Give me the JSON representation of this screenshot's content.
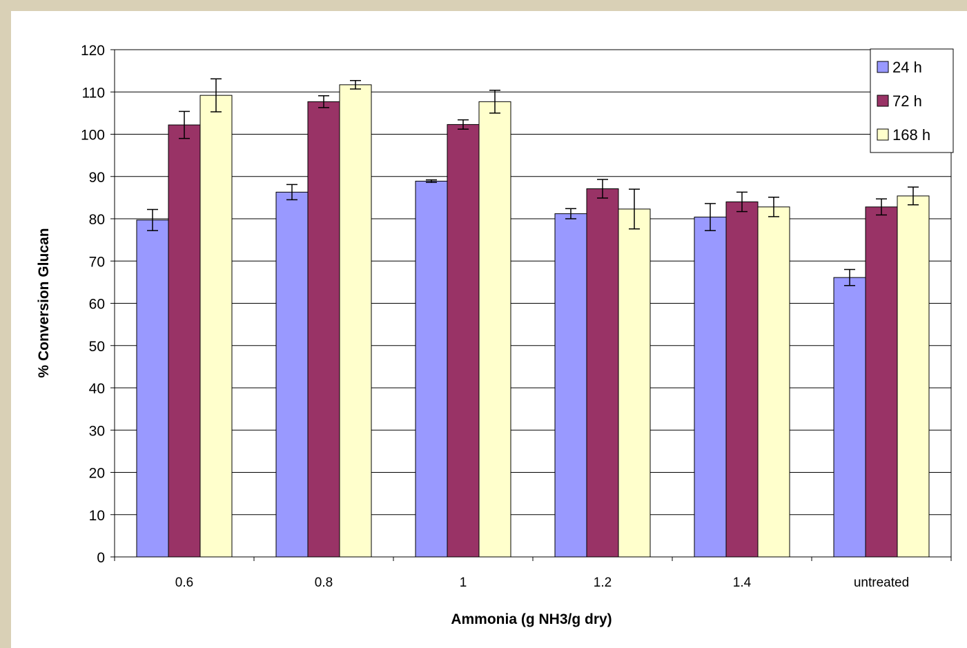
{
  "chart_data": {
    "type": "bar",
    "title": "",
    "xlabel": "Ammonia (g NH3/g dry)",
    "ylabel": "% Conversion Glucan",
    "categories": [
      "0.6",
      "0.8",
      "1",
      "1.2",
      "1.4",
      "untreated"
    ],
    "ylim": [
      0,
      120
    ],
    "yticks": [
      0,
      10,
      20,
      30,
      40,
      50,
      60,
      70,
      80,
      90,
      100,
      110,
      120
    ],
    "grid": true,
    "legend_position": "top-right",
    "series": [
      {
        "name": "24 h",
        "color": "#9999ff",
        "values": [
          79.7,
          86.3,
          88.9,
          81.2,
          80.4,
          66.1
        ],
        "errors": [
          2.5,
          1.8,
          0.3,
          1.2,
          3.2,
          1.9
        ]
      },
      {
        "name": "72 h",
        "color": "#993366",
        "values": [
          102.2,
          107.7,
          102.3,
          87.1,
          84.0,
          82.8
        ],
        "errors": [
          3.2,
          1.4,
          1.1,
          2.2,
          2.3,
          1.9
        ]
      },
      {
        "name": "168 h",
        "color": "#ffffcc",
        "values": [
          109.2,
          111.7,
          107.7,
          82.3,
          82.8,
          85.4
        ],
        "errors": [
          3.9,
          1.0,
          2.7,
          4.7,
          2.3,
          2.1
        ]
      }
    ]
  }
}
